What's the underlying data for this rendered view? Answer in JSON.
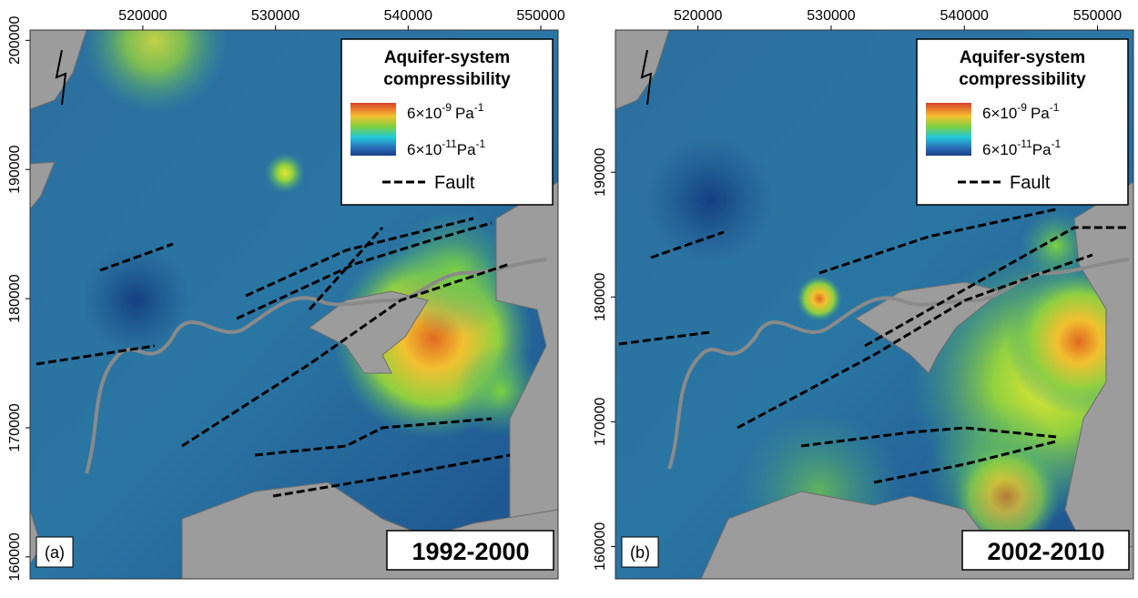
{
  "panels": [
    {
      "label": "(a)",
      "period": "1992-2000",
      "x_ticks": [
        520000,
        530000,
        540000,
        550000
      ],
      "y_ticks": [
        200000,
        190000,
        180000,
        170000,
        160000
      ],
      "xlim": [
        511500,
        551300
      ],
      "ylim": [
        158300,
        200800
      ],
      "legend": {
        "title": [
          "Aquifer-system",
          "compressibility"
        ],
        "high": {
          "base": "6×10",
          "exp": "-9",
          "unit": "Pa",
          "unit_exp": "-1"
        },
        "low": {
          "base": "6×10",
          "exp": "-11",
          "unit": "Pa",
          "unit_exp": "-1"
        },
        "fault": "Fault"
      }
    },
    {
      "label": "(b)",
      "period": "2002-2010",
      "x_ticks": [
        520000,
        530000,
        540000,
        550000
      ],
      "y_ticks": [
        190000,
        180000,
        170000,
        160000
      ],
      "xlim": [
        513800,
        552700
      ],
      "ylim": [
        157400,
        201400
      ],
      "legend": {
        "title": [
          "Aquifer-system",
          "compressibility"
        ],
        "high": {
          "base": "6×10",
          "exp": "-9",
          "unit": "Pa",
          "unit_exp": "-1"
        },
        "low": {
          "base": "6×10",
          "exp": "-11",
          "unit": "Pa",
          "unit_exp": "-1"
        },
        "fault": "Fault"
      }
    }
  ]
}
